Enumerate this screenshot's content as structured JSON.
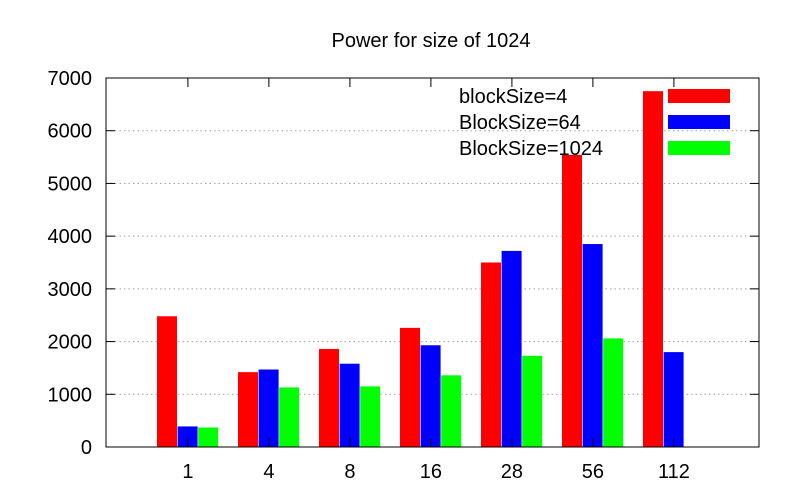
{
  "chart_data": {
    "type": "bar",
    "title": "Power for size of 1024",
    "xlabel": "",
    "ylabel": "",
    "categories": [
      "1",
      "4",
      "8",
      "16",
      "28",
      "56",
      "112"
    ],
    "ylim": [
      0,
      7000
    ],
    "yticks": [
      0,
      1000,
      2000,
      3000,
      4000,
      5000,
      6000,
      7000
    ],
    "grid": true,
    "legend_position": "top-right",
    "series": [
      {
        "name": "blockSize=4",
        "color": "#ff0000",
        "values": [
          2480,
          1420,
          1860,
          2260,
          3500,
          5540,
          6750
        ]
      },
      {
        "name": "BlockSize=64",
        "color": "#0000ff",
        "values": [
          390,
          1470,
          1580,
          1930,
          3720,
          3850,
          1800
        ]
      },
      {
        "name": "BlockSize=1024",
        "color": "#00ff00",
        "values": [
          370,
          1130,
          1150,
          1360,
          1730,
          2060,
          null
        ]
      }
    ]
  }
}
